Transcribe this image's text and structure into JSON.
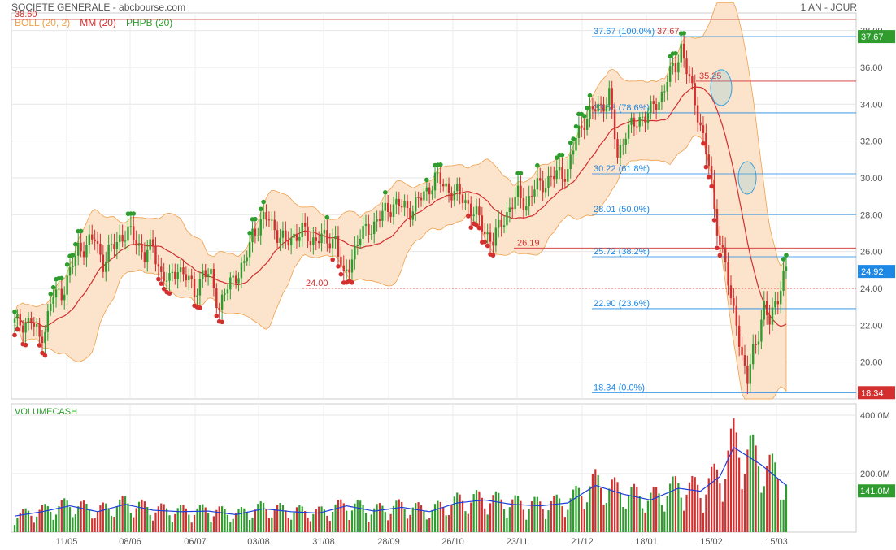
{
  "header": {
    "title": "SOCIETE GENERALE - abcbourse.com",
    "period": "1 AN - JOUR"
  },
  "legend": [
    {
      "label": "BOLL (20, 2)",
      "color": "#f0a04b"
    },
    {
      "label": "MM (20)",
      "color": "#d32f2f"
    },
    {
      "label": "PHPB (20)",
      "color": "#2e9d2e"
    }
  ],
  "chart_data": [
    {
      "type": "candlestick",
      "title": "SOCIETE GENERALE - abcbourse.com",
      "y_ticks": [
        "38.00",
        "36.00",
        "34.00",
        "32.00",
        "30.00",
        "28.00",
        "26.00",
        "24.00",
        "22.00",
        "20.00"
      ],
      "x_ticks": [
        "11/05",
        "08/06",
        "06/07",
        "03/08",
        "31/08",
        "28/09",
        "26/10",
        "23/11",
        "21/12",
        "18/01",
        "15/02",
        "15/03"
      ],
      "ylim": [
        18.0,
        38.6
      ],
      "price_path": [
        [
          0,
          22.1
        ],
        [
          6,
          22.2
        ],
        [
          9,
          21.3
        ],
        [
          11,
          21.9
        ],
        [
          14,
          23.6
        ],
        [
          17,
          23.8
        ],
        [
          20,
          24.8
        ],
        [
          23,
          26.2
        ],
        [
          26,
          26.3
        ],
        [
          29,
          26.7
        ],
        [
          32,
          25.4
        ],
        [
          35,
          26.1
        ],
        [
          38,
          26.8
        ],
        [
          41,
          27.0
        ],
        [
          44,
          26.6
        ],
        [
          47,
          25.8
        ],
        [
          50,
          26.2
        ],
        [
          53,
          24.8
        ],
        [
          56,
          24.3
        ],
        [
          59,
          25.2
        ],
        [
          62,
          24.6
        ],
        [
          65,
          23.8
        ],
        [
          68,
          24.8
        ],
        [
          71,
          24.6
        ],
        [
          74,
          23.0
        ],
        [
          77,
          24.0
        ],
        [
          80,
          24.8
        ],
        [
          83,
          25.2
        ],
        [
          86,
          27.0
        ],
        [
          89,
          27.6
        ],
        [
          92,
          27.8
        ],
        [
          95,
          27.0
        ],
        [
          98,
          26.4
        ],
        [
          101,
          26.9
        ],
        [
          104,
          27.1
        ],
        [
          107,
          26.6
        ],
        [
          110,
          26.8
        ],
        [
          113,
          26.5
        ],
        [
          116,
          26.8
        ],
        [
          119,
          24.4
        ],
        [
          122,
          25.8
        ],
        [
          125,
          26.8
        ],
        [
          128,
          27.3
        ],
        [
          131,
          27.6
        ],
        [
          134,
          28.2
        ],
        [
          137,
          28.6
        ],
        [
          140,
          28.4
        ],
        [
          143,
          28.3
        ],
        [
          146,
          28.7
        ],
        [
          149,
          29.3
        ],
        [
          152,
          30.0
        ],
        [
          155,
          29.6
        ],
        [
          158,
          29.3
        ],
        [
          161,
          29.0
        ],
        [
          164,
          28.6
        ],
        [
          167,
          27.9
        ],
        [
          170,
          27.1
        ],
        [
          173,
          26.6
        ],
        [
          176,
          27.5
        ],
        [
          179,
          28.4
        ],
        [
          182,
          29.0
        ],
        [
          185,
          28.6
        ],
        [
          188,
          29.4
        ],
        [
          191,
          29.7
        ],
        [
          194,
          30.0
        ],
        [
          197,
          30.2
        ],
        [
          200,
          30.4
        ],
        [
          203,
          32.1
        ],
        [
          206,
          33.2
        ],
        [
          209,
          33.6
        ],
        [
          212,
          33.9
        ],
        [
          215,
          34.5
        ],
        [
          218,
          31.1
        ],
        [
          221,
          32.6
        ],
        [
          224,
          32.8
        ],
        [
          227,
          33.4
        ],
        [
          230,
          33.6
        ],
        [
          233,
          34.2
        ],
        [
          236,
          35.4
        ],
        [
          239,
          36.0
        ],
        [
          241,
          37.2
        ],
        [
          243,
          35.9
        ],
        [
          245,
          34.6
        ],
        [
          247,
          33.5
        ],
        [
          249,
          32.3
        ],
        [
          251,
          30.6
        ],
        [
          253,
          28.2
        ],
        [
          255,
          26.6
        ],
        [
          257,
          25.4
        ],
        [
          259,
          23.1
        ],
        [
          261,
          22.4
        ],
        [
          263,
          20.2
        ],
        [
          265,
          18.9
        ],
        [
          267,
          20.6
        ],
        [
          269,
          21.7
        ],
        [
          271,
          22.9
        ],
        [
          273,
          22.1
        ],
        [
          275,
          23.3
        ],
        [
          277,
          24.1
        ],
        [
          279,
          24.9
        ]
      ],
      "fib_levels": [
        {
          "value": 37.67,
          "label": "37.67  (100.0%)"
        },
        {
          "value": 33.53,
          "label": "33.53  (78.6%)"
        },
        {
          "value": 30.22,
          "label": "30.22  (61.8%)"
        },
        {
          "value": 28.01,
          "label": "28.01  (50.0%)"
        },
        {
          "value": 25.72,
          "label": "25.72  (38.2%)"
        },
        {
          "value": 22.9,
          "label": "22.90  (23.6%)"
        },
        {
          "value": 18.34,
          "label": "18.34  (0.0%)"
        }
      ],
      "price_lines": [
        {
          "value": 38.6,
          "label": "38.60"
        },
        {
          "value": 35.25,
          "label": "35.25"
        },
        {
          "value": 26.19,
          "label": "26.19"
        },
        {
          "value": 24.0,
          "label": "24.00"
        },
        {
          "value": 37.67,
          "label": "37.67"
        }
      ],
      "tags": [
        {
          "value": 37.67,
          "label": "37.67",
          "color": "#2e9d2e"
        },
        {
          "value": 24.92,
          "label": "24.92",
          "color": "#1e88e5"
        },
        {
          "value": 18.34,
          "label": "18.34",
          "color": "#d32f2f"
        }
      ],
      "colors": {
        "up": "#2e9d2e",
        "down": "#d32f2f",
        "mm": "#d32f2f",
        "boll_fill": "#fbe3cc",
        "boll_line": "#f0a04b",
        "fib": "#1e88e5"
      }
    },
    {
      "type": "bar",
      "title": "VOLUMECASH",
      "ylim": [
        0,
        400
      ],
      "y_ticks": [
        "400.0M",
        "200.0M"
      ],
      "tag": {
        "value": 141,
        "label": "141.0M"
      },
      "volume_profile": [
        [
          0,
          55
        ],
        [
          10,
          70
        ],
        [
          20,
          90
        ],
        [
          30,
          70
        ],
        [
          40,
          95
        ],
        [
          50,
          75
        ],
        [
          60,
          70
        ],
        [
          70,
          72
        ],
        [
          80,
          60
        ],
        [
          90,
          80
        ],
        [
          100,
          70
        ],
        [
          110,
          65
        ],
        [
          120,
          90
        ],
        [
          130,
          72
        ],
        [
          140,
          85
        ],
        [
          150,
          70
        ],
        [
          160,
          100
        ],
        [
          170,
          110
        ],
        [
          180,
          95
        ],
        [
          190,
          90
        ],
        [
          200,
          100
        ],
        [
          210,
          160
        ],
        [
          220,
          130
        ],
        [
          230,
          110
        ],
        [
          240,
          150
        ],
        [
          248,
          140
        ],
        [
          255,
          190
        ],
        [
          260,
          290
        ],
        [
          265,
          260
        ],
        [
          270,
          230
        ],
        [
          279,
          160
        ]
      ]
    }
  ]
}
